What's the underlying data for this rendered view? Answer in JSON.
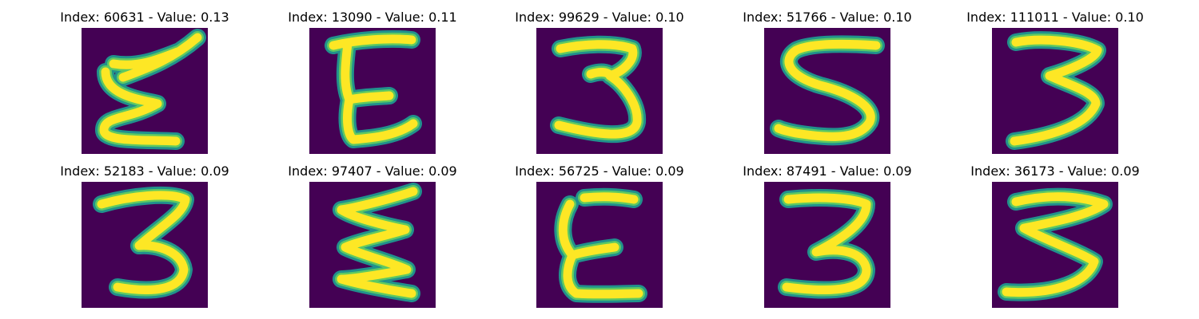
{
  "colors": {
    "background": "#440154",
    "stroke_outer": "#21918c",
    "stroke_mid": "#5ec962",
    "stroke_core": "#fde725"
  },
  "panels": [
    {
      "title": "Index: 60631 - Value: 0.13"
    },
    {
      "title": "Index: 13090 - Value: 0.11"
    },
    {
      "title": "Index: 99629 - Value: 0.10"
    },
    {
      "title": "Index: 51766 - Value: 0.10"
    },
    {
      "title": "Index: 111011 - Value: 0.10"
    },
    {
      "title": "Index: 52183 - Value: 0.09"
    },
    {
      "title": "Index: 97407 - Value: 0.09"
    },
    {
      "title": "Index: 56725 - Value: 0.09"
    },
    {
      "title": "Index: 87491 - Value: 0.09"
    },
    {
      "title": "Index: 36173 - Value: 0.09"
    }
  ]
}
